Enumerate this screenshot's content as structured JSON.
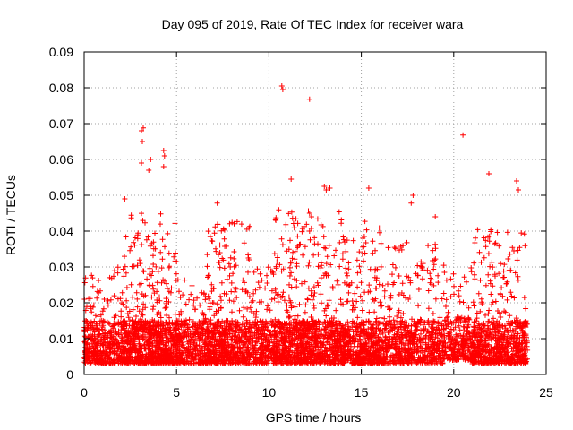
{
  "chart_data": {
    "type": "scatter",
    "title": "Day 095 of 2019, Rate Of TEC Index for receiver wara",
    "xlabel": "GPS time / hours",
    "ylabel": "ROTI / TECUs",
    "xlim": [
      0,
      25
    ],
    "ylim": [
      0,
      0.09
    ],
    "xticks": [
      0,
      5,
      10,
      15,
      20,
      25
    ],
    "xtick_labels": [
      "0",
      "5",
      "10",
      "15",
      "20",
      "25"
    ],
    "yticks": [
      0,
      0.01,
      0.02,
      0.03,
      0.04,
      0.05,
      0.06,
      0.07,
      0.08,
      0.09
    ],
    "ytick_labels": [
      "0",
      "0.01",
      "0.02",
      "0.03",
      "0.04",
      "0.05",
      "0.06",
      "0.07",
      "0.08",
      "0.09"
    ],
    "grid": true,
    "marker": "+",
    "color": "#ff0000",
    "series": [
      {
        "name": "ROTI",
        "description_generated": true,
        "points": [
          [
            10.7,
            0.0805
          ],
          [
            10.75,
            0.0795
          ],
          [
            12.2,
            0.0768
          ],
          [
            20.5,
            0.0668
          ],
          [
            3.1,
            0.068
          ],
          [
            3.2,
            0.0688
          ],
          [
            3.15,
            0.065
          ],
          [
            4.3,
            0.0625
          ],
          [
            4.35,
            0.061
          ],
          [
            3.6,
            0.06
          ],
          [
            3.5,
            0.057
          ],
          [
            3.1,
            0.059
          ],
          [
            4.3,
            0.058
          ],
          [
            11.2,
            0.0545
          ],
          [
            13.0,
            0.0525
          ],
          [
            13.1,
            0.0515
          ],
          [
            13.3,
            0.052
          ],
          [
            15.4,
            0.052
          ],
          [
            21.9,
            0.056
          ],
          [
            23.4,
            0.054
          ],
          [
            23.5,
            0.0515
          ],
          [
            17.8,
            0.05
          ],
          [
            17.7,
            0.0478
          ],
          [
            2.2,
            0.049
          ],
          [
            7.2,
            0.0478
          ],
          [
            19.0,
            0.044
          ],
          [
            12.2,
            0.045
          ],
          [
            12.3,
            0.044
          ]
        ],
        "bands": [
          {
            "x0": 0.0,
            "x1": 2.0,
            "lo": 0.003,
            "hi": 0.03,
            "n": 420
          },
          {
            "x0": 2.0,
            "x1": 5.0,
            "lo": 0.003,
            "hi": 0.045,
            "n": 900
          },
          {
            "x0": 5.0,
            "x1": 6.5,
            "lo": 0.003,
            "hi": 0.028,
            "n": 300
          },
          {
            "x0": 6.5,
            "x1": 9.0,
            "lo": 0.003,
            "hi": 0.043,
            "n": 650
          },
          {
            "x0": 9.0,
            "x1": 10.3,
            "lo": 0.003,
            "hi": 0.03,
            "n": 260
          },
          {
            "x0": 10.3,
            "x1": 14.0,
            "lo": 0.003,
            "hi": 0.046,
            "n": 1000
          },
          {
            "x0": 14.0,
            "x1": 16.0,
            "lo": 0.003,
            "hi": 0.043,
            "n": 520
          },
          {
            "x0": 16.0,
            "x1": 19.5,
            "lo": 0.003,
            "hi": 0.037,
            "n": 700
          },
          {
            "x0": 19.5,
            "x1": 21.0,
            "lo": 0.004,
            "hi": 0.03,
            "n": 260
          },
          {
            "x0": 21.0,
            "x1": 24.0,
            "lo": 0.003,
            "hi": 0.041,
            "n": 720
          }
        ]
      }
    ]
  }
}
